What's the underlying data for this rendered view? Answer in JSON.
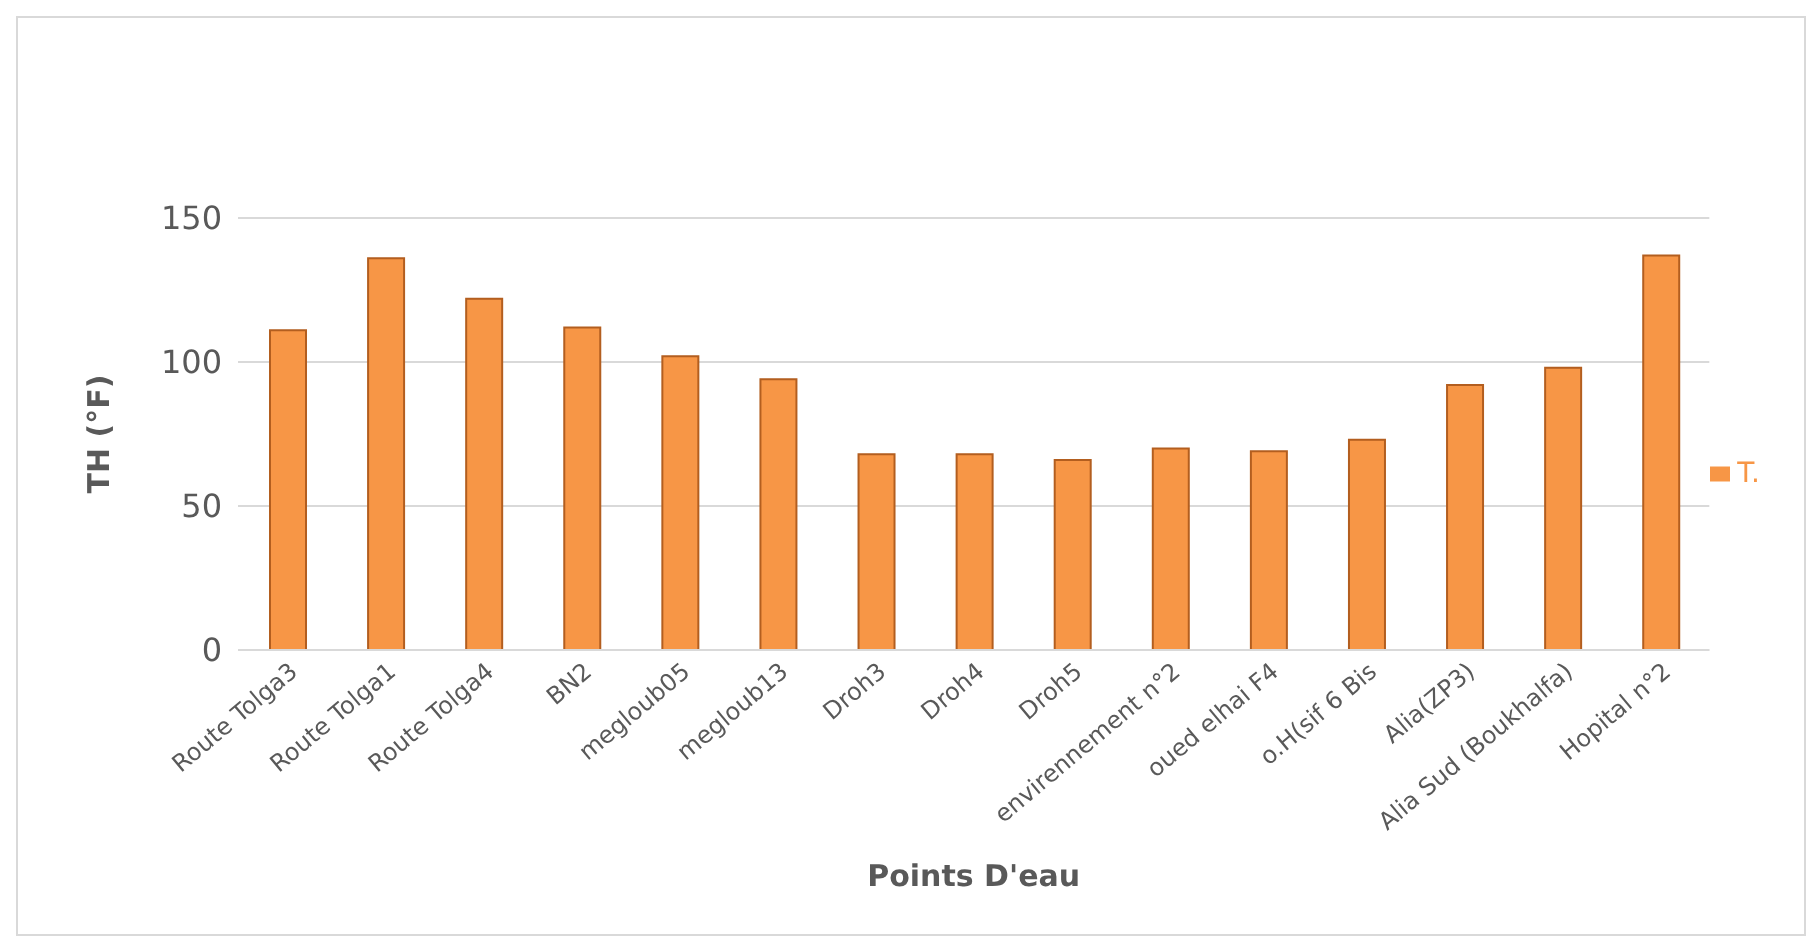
{
  "chart_data": {
    "type": "bar",
    "xlabel": "Points D'eau",
    "ylabel": "TH (°F)",
    "categories": [
      "Route Tolga3",
      "Route Tolga1",
      "Route Tolga4",
      "BN2",
      "megloub05",
      "megloub13",
      "Droh3",
      "Droh4",
      "Droh5",
      "envirennement n°2",
      "oued elhai F4",
      "o.H(sif 6 Bis",
      "Alia(ZP3)",
      "Alia Sud (Boukhalfa)",
      "Hopital n°2"
    ],
    "series": [
      {
        "name": "T.",
        "color": "#f79646",
        "values": [
          111,
          136,
          122,
          112,
          102,
          94,
          68,
          68,
          66,
          70,
          69,
          73,
          92,
          98,
          137
        ]
      }
    ],
    "ylim": [
      0,
      150
    ],
    "yticks": [
      0,
      50,
      100,
      150
    ],
    "grid": "y",
    "legend": "right"
  }
}
